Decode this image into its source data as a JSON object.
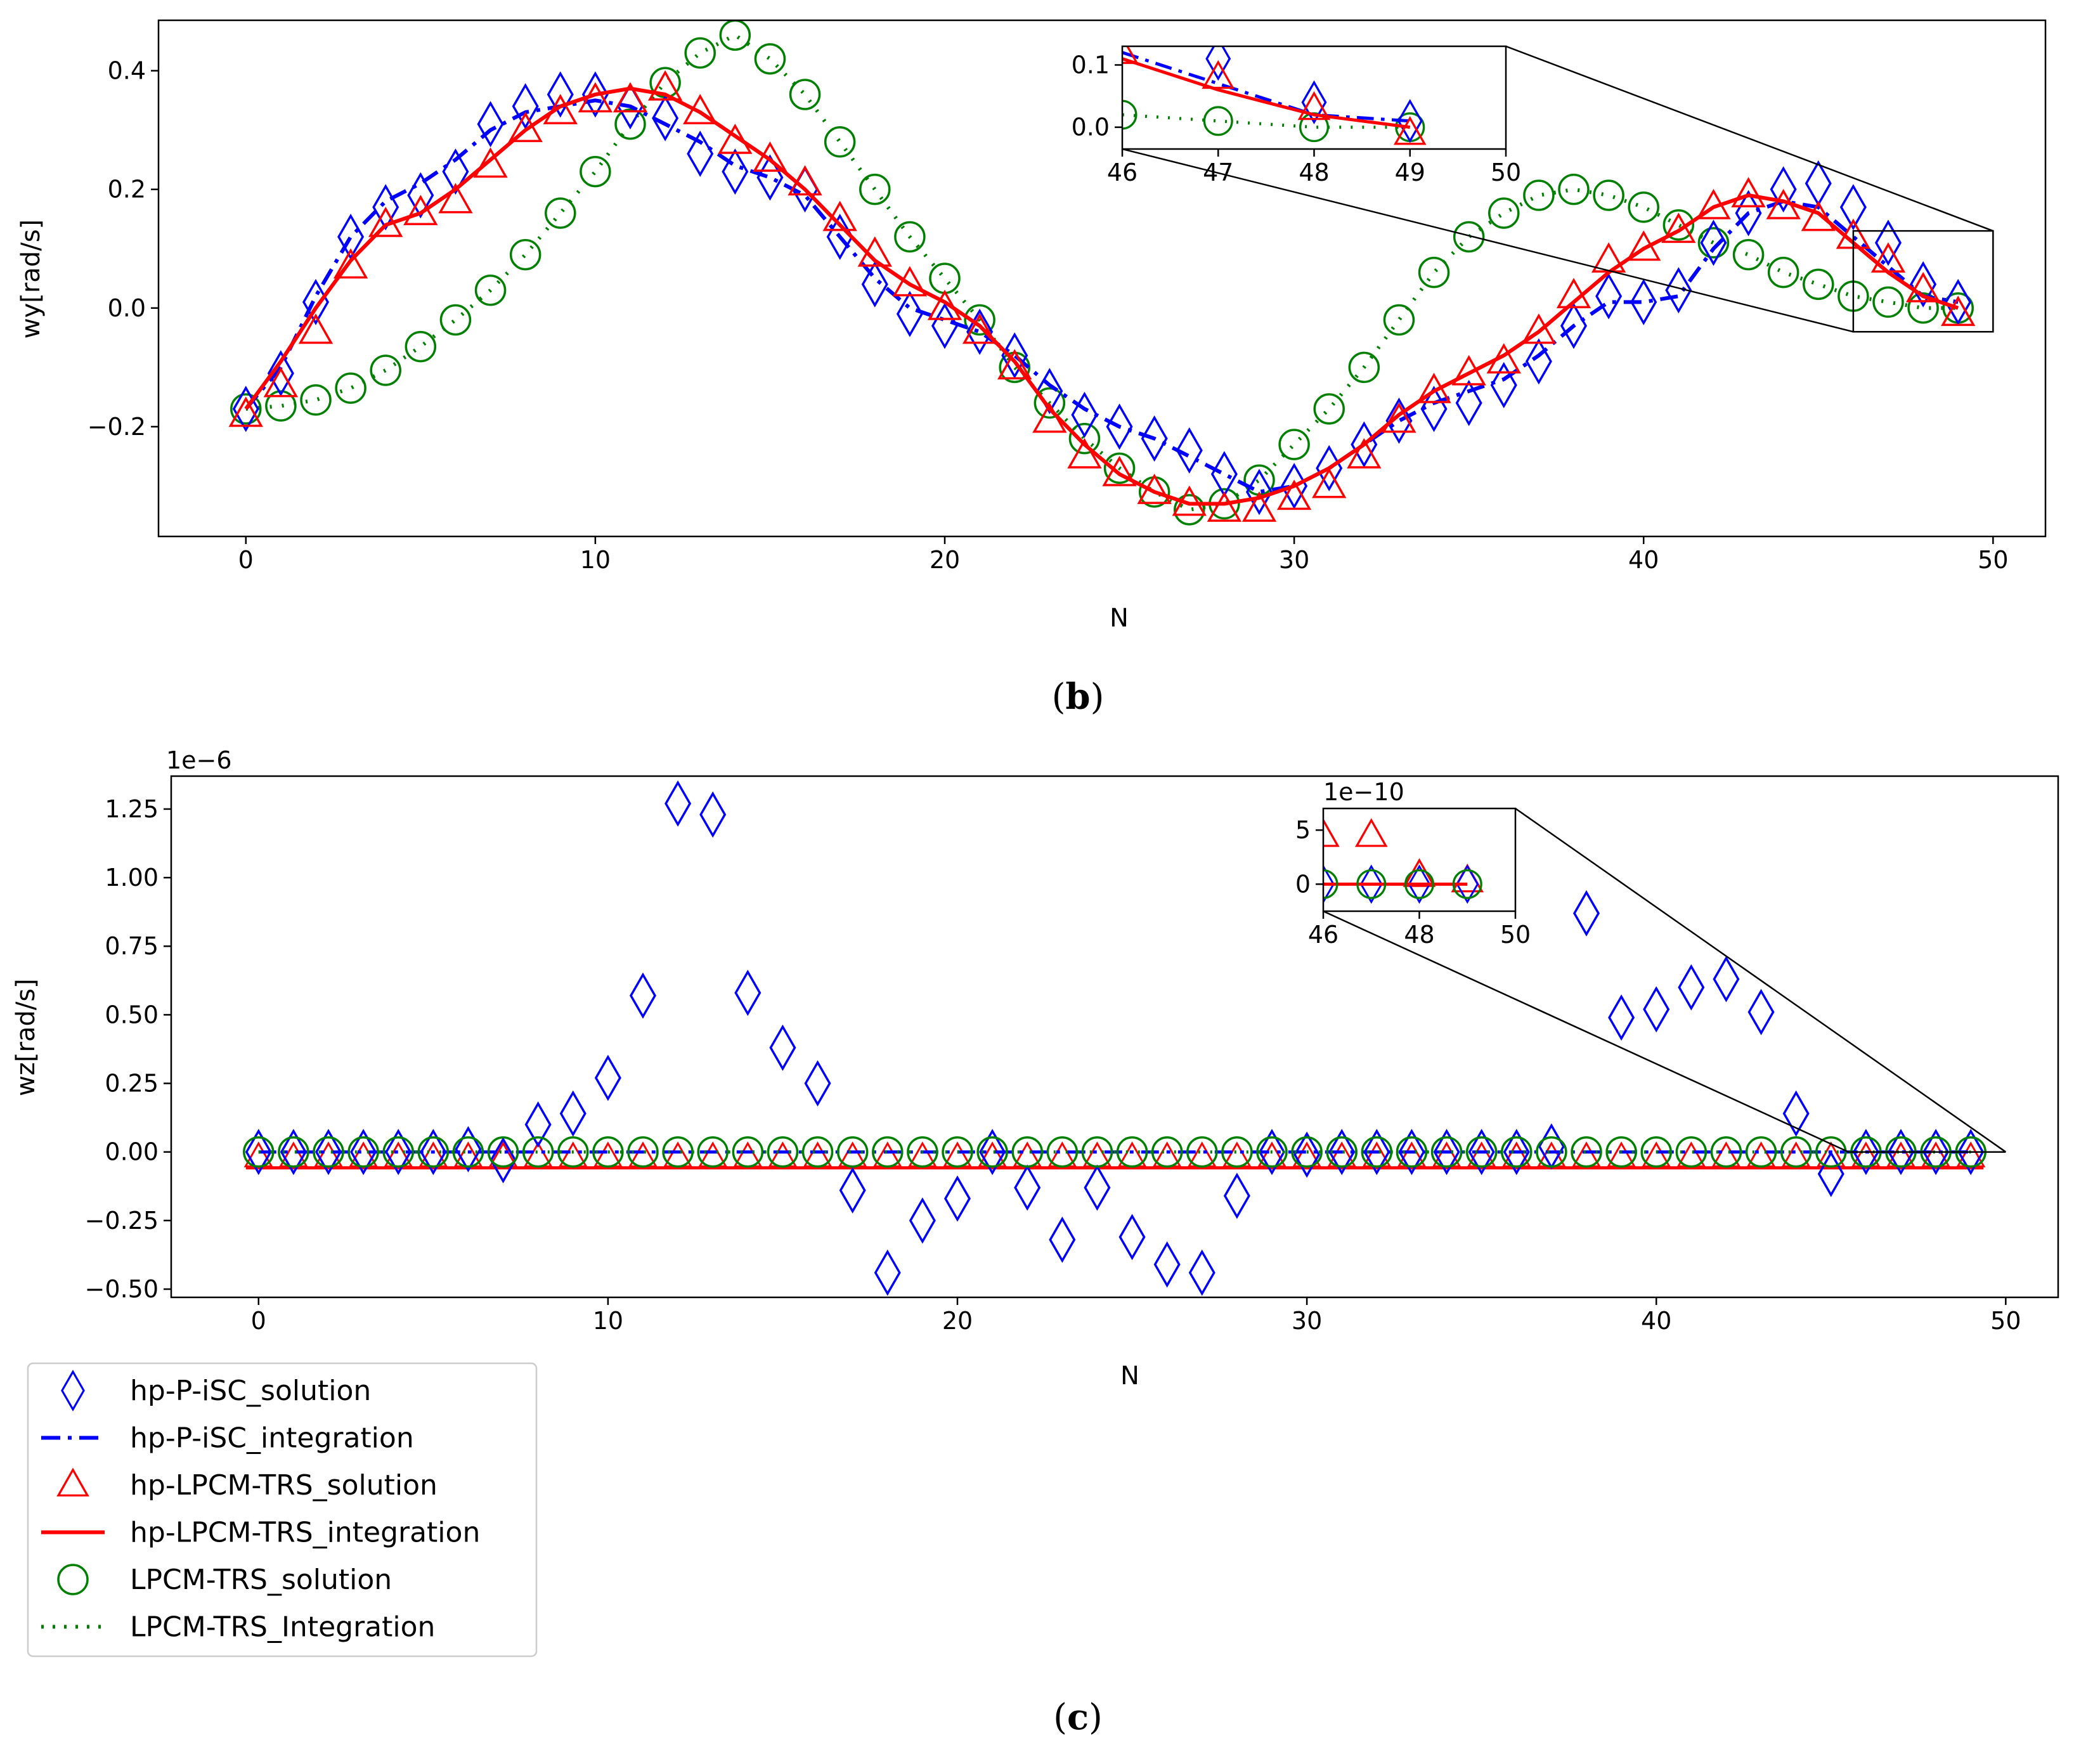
{
  "chart_data": [
    {
      "id": "b",
      "type": "line",
      "caption_letter": "b",
      "caption_open": "(",
      "caption_close": ")",
      "xlabel": "N",
      "ylabel": "wy[rad/s]",
      "xlim": [
        -2.5,
        51.5
      ],
      "ylim": [
        -0.385,
        0.485
      ],
      "xticks": [
        0,
        10,
        20,
        30,
        40,
        50
      ],
      "xtick_labels": [
        "0",
        "10",
        "20",
        "30",
        "40",
        "50"
      ],
      "yticks": [
        -0.2,
        0.0,
        0.2,
        0.4
      ],
      "ytick_labels": [
        "−0.2",
        "0.0",
        "0.2",
        "0.4"
      ],
      "x": [
        0,
        1,
        2,
        3,
        4,
        5,
        6,
        7,
        8,
        9,
        10,
        11,
        12,
        13,
        14,
        15,
        16,
        17,
        18,
        19,
        20,
        21,
        22,
        23,
        24,
        25,
        26,
        27,
        28,
        29,
        30,
        31,
        32,
        33,
        34,
        35,
        36,
        37,
        38,
        39,
        40,
        41,
        42,
        43,
        44,
        45,
        46,
        47,
        48,
        49
      ],
      "series": [
        {
          "name": "hp-P-iSC_solution",
          "values": [
            -0.17,
            -0.11,
            0.01,
            0.12,
            0.17,
            0.19,
            0.23,
            0.31,
            0.34,
            0.36,
            0.36,
            0.34,
            0.32,
            0.26,
            0.23,
            0.22,
            0.2,
            0.12,
            0.04,
            -0.01,
            -0.03,
            -0.04,
            -0.08,
            -0.14,
            -0.18,
            -0.2,
            -0.22,
            -0.24,
            -0.28,
            -0.31,
            -0.3,
            -0.27,
            -0.23,
            -0.19,
            -0.17,
            -0.16,
            -0.13,
            -0.09,
            -0.03,
            0.02,
            0.01,
            0.03,
            0.11,
            0.16,
            0.2,
            0.21,
            0.17,
            0.11,
            0.04,
            0.01
          ]
        },
        {
          "name": "hp-P-iSC_integration",
          "values": [
            -0.17,
            -0.1,
            0.02,
            0.12,
            0.18,
            0.21,
            0.25,
            0.3,
            0.33,
            0.34,
            0.35,
            0.34,
            0.31,
            0.28,
            0.24,
            0.22,
            0.19,
            0.12,
            0.05,
            0.0,
            -0.02,
            -0.04,
            -0.08,
            -0.13,
            -0.17,
            -0.2,
            -0.22,
            -0.25,
            -0.28,
            -0.31,
            -0.3,
            -0.27,
            -0.23,
            -0.19,
            -0.16,
            -0.14,
            -0.12,
            -0.08,
            -0.03,
            0.01,
            0.01,
            0.02,
            0.1,
            0.16,
            0.18,
            0.17,
            0.12,
            0.07,
            0.02,
            0.01
          ]
        },
        {
          "name": "hp-LPCM-TRS_solution",
          "values": [
            -0.18,
            -0.13,
            -0.04,
            0.07,
            0.14,
            0.16,
            0.18,
            0.24,
            0.3,
            0.33,
            0.35,
            0.35,
            0.37,
            0.33,
            0.28,
            0.25,
            0.21,
            0.15,
            0.09,
            0.04,
            0.0,
            -0.04,
            -0.1,
            -0.19,
            -0.25,
            -0.28,
            -0.31,
            -0.33,
            -0.34,
            -0.34,
            -0.32,
            -0.3,
            -0.25,
            -0.19,
            -0.14,
            -0.11,
            -0.09,
            -0.04,
            0.02,
            0.08,
            0.1,
            0.13,
            0.17,
            0.19,
            0.17,
            0.15,
            0.12,
            0.08,
            0.03,
            -0.01
          ]
        },
        {
          "name": "hp-LPCM-TRS_integration",
          "values": [
            -0.17,
            -0.09,
            0.0,
            0.08,
            0.14,
            0.16,
            0.2,
            0.25,
            0.3,
            0.34,
            0.36,
            0.37,
            0.36,
            0.33,
            0.29,
            0.25,
            0.2,
            0.14,
            0.08,
            0.04,
            0.01,
            -0.03,
            -0.09,
            -0.17,
            -0.23,
            -0.28,
            -0.31,
            -0.33,
            -0.33,
            -0.32,
            -0.3,
            -0.27,
            -0.23,
            -0.18,
            -0.14,
            -0.11,
            -0.08,
            -0.04,
            0.01,
            0.06,
            0.1,
            0.13,
            0.17,
            0.19,
            0.18,
            0.16,
            0.11,
            0.06,
            0.02,
            0.0
          ]
        },
        {
          "name": "LPCM-TRS_solution",
          "values": [
            -0.17,
            -0.165,
            -0.155,
            -0.135,
            -0.105,
            -0.065,
            -0.02,
            0.03,
            0.09,
            0.16,
            0.23,
            0.31,
            0.38,
            0.43,
            0.46,
            0.42,
            0.36,
            0.28,
            0.2,
            0.12,
            0.05,
            -0.02,
            -0.1,
            -0.16,
            -0.22,
            -0.27,
            -0.31,
            -0.34,
            -0.33,
            -0.29,
            -0.23,
            -0.17,
            -0.1,
            -0.02,
            0.06,
            0.12,
            0.16,
            0.19,
            0.2,
            0.19,
            0.17,
            0.14,
            0.11,
            0.09,
            0.06,
            0.04,
            0.02,
            0.01,
            0.0,
            0.0
          ]
        },
        {
          "name": "LPCM-TRS_Integration",
          "values": [
            -0.17,
            -0.165,
            -0.155,
            -0.135,
            -0.105,
            -0.065,
            -0.02,
            0.03,
            0.09,
            0.16,
            0.23,
            0.31,
            0.38,
            0.43,
            0.46,
            0.42,
            0.36,
            0.28,
            0.2,
            0.12,
            0.05,
            -0.02,
            -0.1,
            -0.16,
            -0.22,
            -0.27,
            -0.31,
            -0.34,
            -0.33,
            -0.29,
            -0.23,
            -0.17,
            -0.1,
            -0.02,
            0.06,
            0.12,
            0.16,
            0.19,
            0.2,
            0.19,
            0.17,
            0.14,
            0.11,
            0.09,
            0.06,
            0.04,
            0.02,
            0.01,
            0.0,
            0.0
          ]
        }
      ],
      "inset": {
        "xlim": [
          46,
          50
        ],
        "ylim": [
          -0.035,
          0.13
        ],
        "xticks": [
          46,
          47,
          48,
          49,
          50
        ],
        "xtick_labels": [
          "46",
          "47",
          "48",
          "49",
          "50"
        ],
        "yticks": [
          0.0,
          0.1
        ],
        "ytick_labels": [
          "0.0",
          "0.1"
        ],
        "zoom_box": {
          "xlim": [
            46,
            50
          ],
          "ylim": [
            -0.04,
            0.13
          ]
        }
      }
    },
    {
      "id": "c",
      "type": "scatter",
      "caption_letter": "c",
      "caption_open": "(",
      "caption_close": ")",
      "xlabel": "N",
      "ylabel": "wz[rad/s]",
      "offset_text": "1e−6",
      "xlim": [
        -2.5,
        51.5
      ],
      "ylim": [
        -0.53,
        1.37
      ],
      "xticks": [
        0,
        10,
        20,
        30,
        40,
        50
      ],
      "xtick_labels": [
        "0",
        "10",
        "20",
        "30",
        "40",
        "50"
      ],
      "yticks": [
        -0.5,
        -0.25,
        0.0,
        0.25,
        0.5,
        0.75,
        1.0,
        1.25
      ],
      "ytick_labels": [
        "−0.50",
        "−0.25",
        "0.00",
        "0.25",
        "0.50",
        "0.75",
        "1.00",
        "1.25"
      ],
      "x": [
        0,
        1,
        2,
        3,
        4,
        5,
        6,
        7,
        8,
        9,
        10,
        11,
        12,
        13,
        14,
        15,
        16,
        17,
        18,
        19,
        20,
        21,
        22,
        23,
        24,
        25,
        26,
        27,
        28,
        29,
        30,
        31,
        32,
        33,
        34,
        35,
        36,
        37,
        38,
        39,
        40,
        41,
        42,
        43,
        44,
        45,
        46,
        47,
        48,
        49
      ],
      "series": [
        {
          "name": "hp-P-iSC_solution",
          "values": [
            0,
            0,
            0,
            0,
            0,
            0,
            0.01,
            -0.03,
            0.1,
            0.14,
            0.27,
            0.57,
            1.27,
            1.23,
            0.58,
            0.38,
            0.25,
            -0.14,
            -0.44,
            -0.25,
            -0.17,
            0,
            -0.13,
            -0.32,
            -0.13,
            -0.31,
            -0.41,
            -0.44,
            -0.16,
            0,
            -0.01,
            0,
            0,
            0,
            0,
            0,
            0,
            0.02,
            0.87,
            0.49,
            0.52,
            0.6,
            0.63,
            0.51,
            0.14,
            -0.08,
            0,
            0,
            0,
            0
          ]
        },
        {
          "name": "hp-P-iSC_integration",
          "values": [
            0,
            0,
            0,
            0,
            0,
            0,
            0,
            0,
            0,
            0,
            0,
            0,
            0,
            0,
            0,
            0,
            0,
            0,
            0,
            0,
            0,
            0,
            0,
            0,
            0,
            0,
            0,
            0,
            0,
            0,
            0,
            0,
            0,
            0,
            0,
            0,
            0,
            0,
            0,
            0,
            0,
            0,
            0,
            0,
            0,
            0,
            0,
            0,
            0,
            0
          ]
        },
        {
          "name": "hp-LPCM-TRS_solution",
          "values": [
            0,
            0,
            0,
            0,
            0,
            0,
            0,
            0,
            0,
            0,
            0,
            0,
            0,
            0,
            0,
            0,
            0,
            0,
            0,
            0,
            0,
            0,
            0,
            0,
            0,
            0,
            0,
            0,
            0,
            0,
            0,
            0,
            0,
            0,
            0,
            0,
            0,
            0,
            0,
            0,
            0,
            0,
            0,
            0,
            0,
            0,
            0,
            0,
            0,
            0
          ]
        },
        {
          "name": "hp-LPCM-TRS_integration",
          "values": [
            0,
            0,
            0,
            0,
            0,
            0,
            0,
            0,
            0,
            0,
            0,
            0,
            0,
            0,
            0,
            0,
            0,
            0,
            0,
            0,
            0,
            0,
            0,
            0,
            0,
            0,
            0,
            0,
            0,
            0,
            0,
            0,
            0,
            0,
            0,
            0,
            0,
            0,
            0,
            0,
            0,
            0,
            0,
            0,
            0,
            0,
            0,
            0,
            0,
            0
          ]
        },
        {
          "name": "LPCM-TRS_solution",
          "values": [
            0,
            0,
            0,
            0,
            0,
            0,
            0,
            0,
            0,
            0,
            0,
            0,
            0,
            0,
            0,
            0,
            0,
            0,
            0,
            0,
            0,
            0,
            0,
            0,
            0,
            0,
            0,
            0,
            0,
            0,
            0,
            0,
            0,
            0,
            0,
            0,
            0,
            0,
            0,
            0,
            0,
            0,
            0,
            0,
            0,
            0,
            0,
            0,
            0,
            0
          ]
        },
        {
          "name": "LPCM-TRS_Integration",
          "values": [
            0,
            0,
            0,
            0,
            0,
            0,
            0,
            0,
            0,
            0,
            0,
            0,
            0,
            0,
            0,
            0,
            0,
            0,
            0,
            0,
            0,
            0,
            0,
            0,
            0,
            0,
            0,
            0,
            0,
            0,
            0,
            0,
            0,
            0,
            0,
            0,
            0,
            0,
            0,
            0,
            0,
            0,
            0,
            0,
            0,
            0,
            0,
            0,
            0,
            0
          ]
        }
      ],
      "inset": {
        "offset_text": "1e−10",
        "xlim": [
          46,
          50
        ],
        "ylim": [
          -2.5,
          7
        ],
        "xticks": [
          46,
          48,
          50
        ],
        "xtick_labels": [
          "46",
          "48",
          "50"
        ],
        "yticks": [
          0,
          5
        ],
        "ytick_labels": [
          "0",
          "5"
        ],
        "tri_values": [
          4.5,
          4.5,
          0.8,
          0.3
        ],
        "zoom_box": {
          "xlim": [
            45.5,
            50
          ],
          "ylim": [
            -0.002,
            0.002
          ]
        }
      }
    }
  ],
  "legend": {
    "placement": "bottom-left",
    "entries": [
      {
        "label": "hp-P-iSC_solution",
        "kind": "diamond",
        "color": "#0000ff"
      },
      {
        "label": "hp-P-iSC_integration",
        "kind": "dashdot",
        "color": "#0000ff"
      },
      {
        "label": "hp-LPCM-TRS_solution",
        "kind": "triangle",
        "color": "#ff0000"
      },
      {
        "label": "hp-LPCM-TRS_integration",
        "kind": "solid",
        "color": "#ff0000"
      },
      {
        "label": "LPCM-TRS_solution",
        "kind": "circle",
        "color": "#008000"
      },
      {
        "label": "LPCM-TRS_Integration",
        "kind": "dotted",
        "color": "#008000"
      }
    ]
  },
  "colors": {
    "blue": "#0000ff",
    "red": "#ff0000",
    "green": "#008000"
  }
}
